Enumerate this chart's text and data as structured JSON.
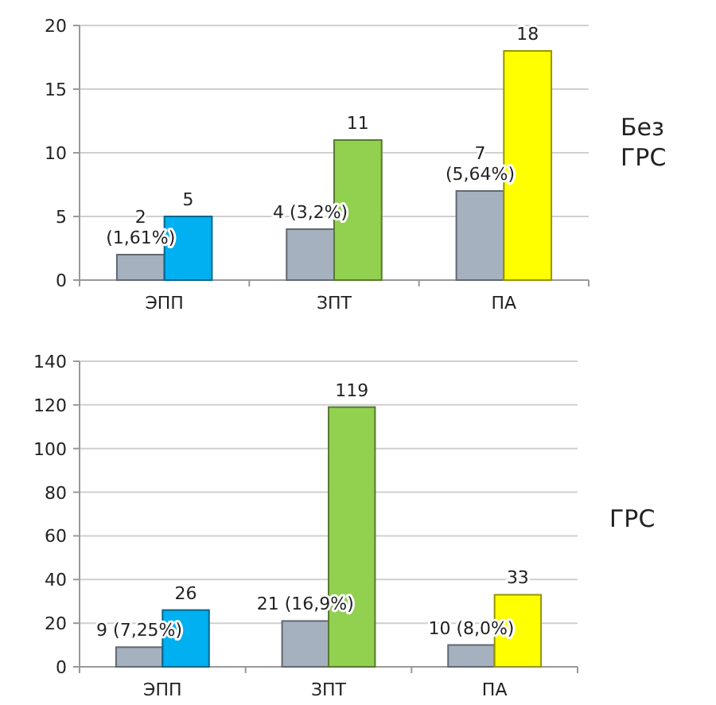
{
  "chart_data": [
    {
      "type": "bar",
      "annotations": [
        "Без\nГРС"
      ],
      "categories": [
        "ЭПП",
        "ЗПТ",
        "ПА"
      ],
      "ylim": [
        0,
        20
      ],
      "yticks": [
        0,
        5,
        10,
        15,
        20
      ],
      "grid": "y",
      "series": [
        {
          "color": "#a5b1bf",
          "values": [
            2,
            4,
            7
          ],
          "value_labels": [
            "2\n(1,61%)",
            "4 (3,2%)",
            "7\n(5,64%)"
          ]
        },
        {
          "colors": [
            "#00b0f0",
            "#92d050",
            "#ffff00"
          ],
          "values": [
            5,
            11,
            18
          ],
          "value_labels": [
            "5",
            "11",
            "18"
          ]
        }
      ]
    },
    {
      "type": "bar",
      "annotations": [
        "ГРС"
      ],
      "categories": [
        "ЭПП",
        "ЗПТ",
        "ПА"
      ],
      "ylim": [
        0,
        140
      ],
      "yticks": [
        0,
        20,
        40,
        60,
        80,
        100,
        120,
        140
      ],
      "grid": "y",
      "series": [
        {
          "color": "#a5b1bf",
          "values": [
            9,
            21,
            10
          ],
          "value_labels": [
            "9 (7,25%)",
            "21 (16,9%)",
            "10 (8,0%)"
          ]
        },
        {
          "colors": [
            "#00b0f0",
            "#92d050",
            "#ffff00"
          ],
          "values": [
            26,
            119,
            33
          ],
          "value_labels": [
            "26",
            "119",
            "33"
          ]
        }
      ]
    }
  ]
}
